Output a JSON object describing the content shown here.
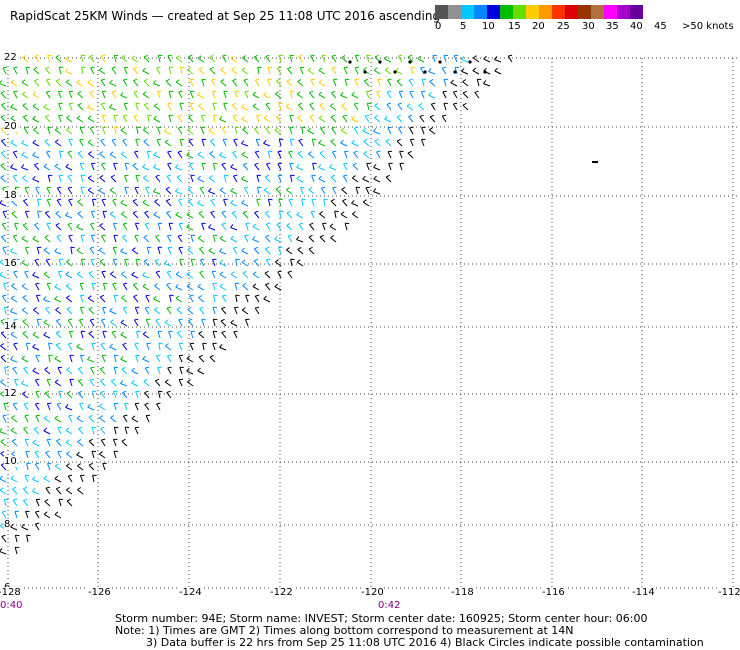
{
  "title": "RapidScat 25KM Winds — created at Sep 25 11:08 UTC 2016 ascending",
  "legend": {
    "colors": [
      "#555555",
      "#909090",
      "#00c8ff",
      "#0088ff",
      "#0000dd",
      "#00bb00",
      "#66dd00",
      "#ffcc00",
      "#ff9900",
      "#ff3300",
      "#dd0000",
      "#993300",
      "#b07040",
      "#ff00ff",
      "#aa00cc",
      "#660099"
    ],
    "labels": [
      "0",
      "5",
      "10",
      "15",
      "20",
      "25",
      "30",
      "35",
      "40",
      "45",
      ">50 knots"
    ]
  },
  "map": {
    "lat_labels": [
      "22",
      "20",
      "18",
      "16",
      "14",
      "12",
      "10",
      "8",
      "6"
    ],
    "lon_labels": [
      "-128",
      "-126",
      "-124",
      "-122",
      "-120",
      "-118",
      "-116",
      "-114",
      "-112"
    ],
    "time_labels": [
      "0:40",
      "0:42"
    ]
  },
  "footer": {
    "line1": "Storm number: 94E;   Storm name: INVEST;   Storm center date: 160925;   Storm center hour: 06:00",
    "line2": "Note: 1) Times are GMT  2) Times along bottom correspond to measurement at 14N",
    "line3": "3) Data buffer is 22 hrs from Sep 25 11:08 UTC 2016   4) Black Circles indicate possible contamination"
  }
}
